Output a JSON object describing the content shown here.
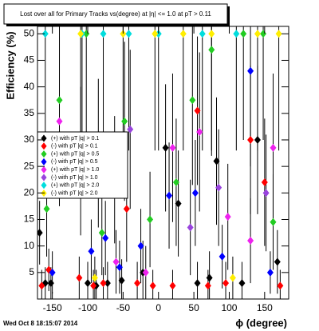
{
  "chart_data": {
    "type": "scatter",
    "title": "Lost over all for Primary Tracks vs(degree) at |η| <= 1.0 at pT > 0.11",
    "x_label": "ϕ (degree)",
    "y_label": "Efficiency (%)",
    "xlim": [
      -171,
      184
    ],
    "ylim": [
      0,
      51.4
    ],
    "xticks": [
      -150,
      -100,
      -50,
      0,
      50,
      100,
      150
    ],
    "yticks": [
      5,
      10,
      15,
      20,
      25,
      30,
      35,
      40,
      45,
      50
    ],
    "series": [
      {
        "name": "(+) with pT |q| > 0.1",
        "color": "#000000",
        "x": [
          -168,
          -160,
          -152,
          -100,
          -88,
          -72,
          -52,
          -22,
          10,
          28,
          55,
          72,
          82,
          118,
          140,
          168
        ],
        "values": [
          12.5,
          3,
          3,
          3,
          2.5,
          3,
          3.5,
          5,
          28.5,
          18,
          3,
          4,
          26,
          3,
          30,
          7
        ],
        "errors": [
          6,
          3,
          3,
          4,
          3,
          4,
          4,
          6,
          12,
          10,
          4,
          5,
          12,
          4,
          14,
          6
        ]
      },
      {
        "name": "(-) with pT |q| > 0.1",
        "color": "#ff0000",
        "x": [
          -165,
          -155,
          -112,
          -92,
          -78,
          -45,
          -30,
          -8,
          20,
          55,
          70,
          95,
          130,
          150,
          172
        ],
        "values": [
          2.5,
          5.5,
          4,
          2.5,
          3,
          17,
          3,
          2.5,
          2.5,
          35.5,
          2.5,
          3,
          30,
          22,
          2.5
        ],
        "errors": [
          3,
          4,
          4,
          3,
          3,
          10,
          4,
          3,
          3,
          14,
          3,
          4,
          14,
          12,
          3
        ]
      },
      {
        "name": "(+) with pT |q| > 0.5",
        "color": "#22cc22",
        "x": [
          -158,
          -140,
          -102,
          -85,
          -80,
          -48,
          -12,
          25,
          48,
          75,
          120,
          148,
          162
        ],
        "values": [
          17,
          37.5,
          50,
          27.5,
          12.5,
          33.5,
          15,
          22,
          37.5,
          47,
          50,
          50,
          14.5
        ],
        "errors": [
          9,
          15,
          20,
          14,
          8,
          15,
          9,
          12,
          16,
          20,
          20,
          20,
          9
        ]
      },
      {
        "name": "(-) with pT |q| > 0.5",
        "color": "#0000ff",
        "x": [
          -150,
          -95,
          -75,
          -55,
          -25,
          15,
          52,
          90,
          130,
          158
        ],
        "values": [
          5,
          9,
          11.5,
          6,
          10,
          19.5,
          20,
          8,
          43,
          5
        ],
        "errors": [
          4,
          6,
          7,
          5,
          7,
          10,
          10,
          6,
          18,
          4
        ]
      },
      {
        "name": "(+) with pT |q| > 1.0",
        "color": "#ee22ee",
        "x": [
          -140,
          -60,
          -18,
          20,
          58,
          98,
          130,
          162
        ],
        "values": [
          33.5,
          7,
          5,
          28.5,
          31.5,
          15.5,
          11,
          28.5
        ],
        "errors": [
          16,
          6,
          5,
          14,
          15,
          10,
          8,
          14
        ]
      },
      {
        "name": "(-) with pT |q| > 1.0",
        "color": "#9944dd",
        "x": [
          -175,
          -110,
          -62,
          -40,
          45,
          85,
          152
        ],
        "values": [
          20,
          26,
          22.5,
          32,
          13.5,
          21,
          20
        ],
        "errors": [
          11,
          14,
          12,
          15,
          9,
          11,
          11
        ]
      },
      {
        "name": "(+) with pT |q| > 2.0",
        "color": "#00dddd",
        "x": [
          -160,
          -108,
          -78,
          -42,
          0,
          62,
          110
        ],
        "values": [
          50,
          50,
          50,
          50,
          50,
          50,
          50
        ],
        "errors": [
          22,
          22,
          22,
          22,
          22,
          22,
          22
        ]
      },
      {
        "name": "(-) with pT |q| > 2.0",
        "color": "#ffee00",
        "x": [
          -110,
          -90,
          -50,
          -5,
          35,
          75,
          105,
          140,
          170
        ],
        "values": [
          50,
          4,
          50,
          50,
          50,
          50,
          4,
          50,
          50
        ],
        "errors": [
          22,
          4,
          22,
          22,
          22,
          22,
          4,
          22,
          22
        ]
      }
    ]
  },
  "timestamp": "Wed Oct  8 18:15:07 2014"
}
